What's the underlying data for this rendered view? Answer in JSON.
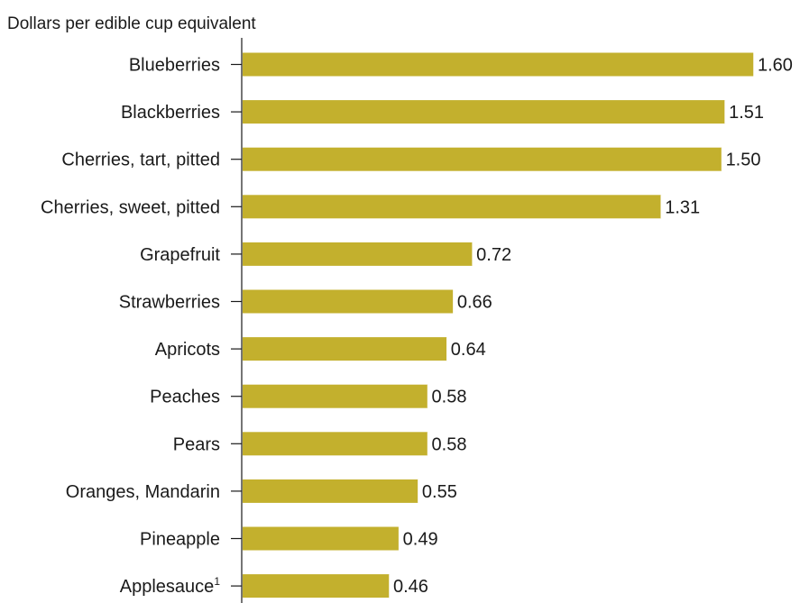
{
  "chart_data": {
    "type": "bar",
    "orientation": "horizontal",
    "title": "Dollars per edible cup equivalent",
    "categories": [
      "Blueberries",
      "Blackberries",
      "Cherries, tart, pitted",
      "Cherries, sweet, pitted",
      "Grapefruit",
      "Strawberries",
      "Apricots",
      "Peaches",
      "Pears",
      "Oranges, Mandarin",
      "Pineapple",
      "Applesauce"
    ],
    "footnote_markers": [
      "",
      "",
      "",
      "",
      "",
      "",
      "",
      "",
      "",
      "",
      "",
      "1"
    ],
    "values": [
      1.6,
      1.51,
      1.5,
      1.31,
      0.72,
      0.66,
      0.64,
      0.58,
      0.58,
      0.55,
      0.49,
      0.46
    ],
    "value_labels": [
      "1.60",
      "1.51",
      "1.50",
      "1.31",
      "0.72",
      "0.66",
      "0.64",
      "0.58",
      "0.58",
      "0.55",
      "0.49",
      "0.46"
    ],
    "xlim": [
      0,
      1.6
    ],
    "grid": false,
    "legend": "none",
    "bar_color": "#c3b02d"
  }
}
